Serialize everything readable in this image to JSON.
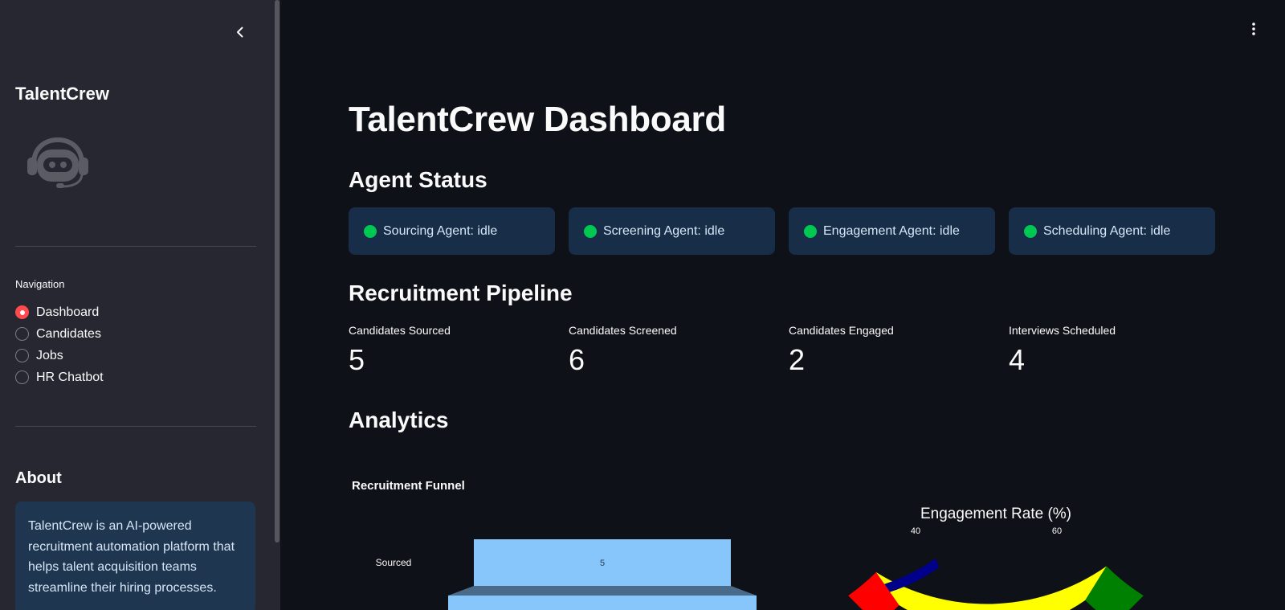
{
  "sidebar": {
    "brand": "TalentCrew",
    "nav_title": "Navigation",
    "nav_items": [
      {
        "label": "Dashboard",
        "selected": true
      },
      {
        "label": "Candidates",
        "selected": false
      },
      {
        "label": "Jobs",
        "selected": false
      },
      {
        "label": "HR Chatbot",
        "selected": false
      }
    ],
    "about_title": "About",
    "about_text": "TalentCrew is an AI-powered recruitment automation platform that helps talent acquisition teams streamline their hiring processes."
  },
  "main": {
    "title": "TalentCrew Dashboard",
    "agent_status_heading": "Agent Status",
    "agents": [
      {
        "label": "Sourcing Agent: idle",
        "status_color": "#00c853"
      },
      {
        "label": "Screening Agent: idle",
        "status_color": "#00c853"
      },
      {
        "label": "Engagement Agent: idle",
        "status_color": "#00c853"
      },
      {
        "label": "Scheduling Agent: idle",
        "status_color": "#00c853"
      }
    ],
    "pipeline_heading": "Recruitment Pipeline",
    "metrics": [
      {
        "label": "Candidates Sourced",
        "value": "5"
      },
      {
        "label": "Candidates Screened",
        "value": "6"
      },
      {
        "label": "Candidates Engaged",
        "value": "2"
      },
      {
        "label": "Interviews Scheduled",
        "value": "4"
      }
    ],
    "analytics_heading": "Analytics"
  },
  "chart_data": [
    {
      "type": "funnel",
      "title": "Recruitment Funnel",
      "categories": [
        "Sourced"
      ],
      "values": [
        5
      ],
      "bar_color": "#87c6fa"
    },
    {
      "type": "gauge",
      "title": "Engagement Rate (%)",
      "tick_labels": [
        "40",
        "60"
      ],
      "band_colors": [
        "#ff0000",
        "#ffff00",
        "#008000"
      ],
      "needle_bar_color": "#00008b"
    }
  ]
}
